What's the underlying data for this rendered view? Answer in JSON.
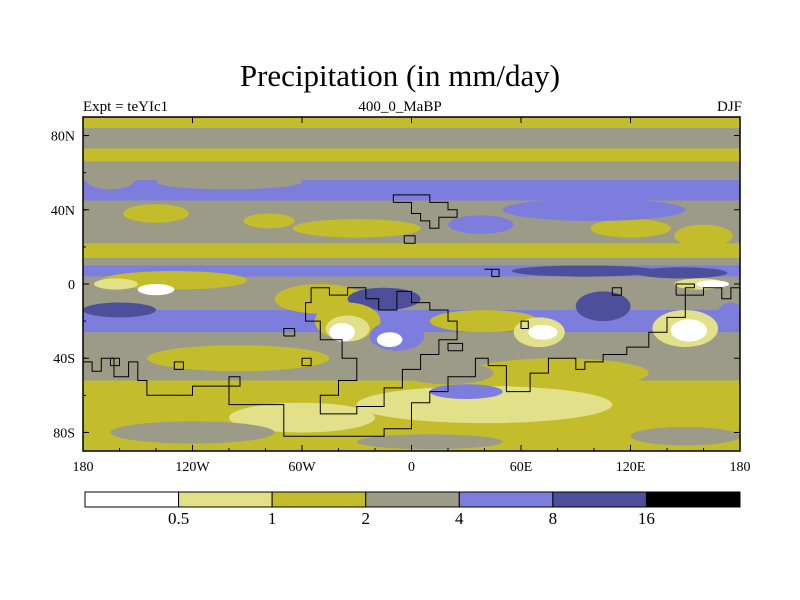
{
  "chart_data": {
    "type": "heatmap",
    "title": "Precipitation (in mm/day)",
    "subtitle_left": "Expt = teYIc1",
    "subtitle_center": "400_0_MaBP",
    "subtitle_right": "DJF",
    "x_range": [
      -180,
      180
    ],
    "y_range": [
      -90,
      90
    ],
    "x_ticks": [
      {
        "value": -180,
        "label": "180"
      },
      {
        "value": -120,
        "label": "120W"
      },
      {
        "value": -60,
        "label": "60W"
      },
      {
        "value": 0,
        "label": "0"
      },
      {
        "value": 60,
        "label": "60E"
      },
      {
        "value": 120,
        "label": "120E"
      },
      {
        "value": 180,
        "label": "180"
      }
    ],
    "y_ticks": [
      {
        "value": 80,
        "label": "80N"
      },
      {
        "value": 40,
        "label": "40N"
      },
      {
        "value": 0,
        "label": "0"
      },
      {
        "value": -40,
        "label": "40S"
      },
      {
        "value": -80,
        "label": "80S"
      }
    ],
    "levels": [
      0.5,
      1,
      2,
      4,
      8,
      16
    ],
    "level_labels": [
      "0.5",
      "1",
      "2",
      "4",
      "8",
      "16"
    ],
    "colors": [
      "#ffffff",
      "#e3e08a",
      "#c4bd2b",
      "#9c9b88",
      "#7d7dde",
      "#4e4f9b",
      "#000000"
    ],
    "zonal_bands": [
      {
        "lat": [
          84,
          90
        ],
        "level": 2
      },
      {
        "lat": [
          73,
          84
        ],
        "level": 3
      },
      {
        "lat": [
          66,
          73
        ],
        "level": 2
      },
      {
        "lat": [
          56,
          66
        ],
        "level": 3
      },
      {
        "lat": [
          45,
          56
        ],
        "level": 4
      },
      {
        "lat": [
          38,
          45
        ],
        "level": 3
      },
      {
        "lat": [
          22,
          38
        ],
        "level": 3
      },
      {
        "lat": [
          14,
          22
        ],
        "level": 2
      },
      {
        "lat": [
          10,
          14
        ],
        "level": 3
      },
      {
        "lat": [
          4,
          10
        ],
        "level": 4
      },
      {
        "lat": [
          -2,
          4
        ],
        "level": 3
      },
      {
        "lat": [
          -14,
          -2
        ],
        "level": 3
      },
      {
        "lat": [
          -26,
          -14
        ],
        "level": 4
      },
      {
        "lat": [
          -34,
          -26
        ],
        "level": 3
      },
      {
        "lat": [
          -52,
          -34
        ],
        "level": 3
      },
      {
        "lat": [
          -60,
          -52
        ],
        "level": 2
      },
      {
        "lat": [
          -90,
          -60
        ],
        "level": 2
      }
    ],
    "blobs": [
      {
        "lon": -165,
        "lat": 57,
        "rx": 14,
        "ry": 6,
        "level": 3
      },
      {
        "lon": -100,
        "lat": 55,
        "rx": 40,
        "ry": 4,
        "level": 3
      },
      {
        "lon": -140,
        "lat": 38,
        "rx": 18,
        "ry": 5,
        "level": 2
      },
      {
        "lon": -30,
        "lat": 30,
        "rx": 35,
        "ry": 5,
        "level": 2
      },
      {
        "lon": -78,
        "lat": 34,
        "rx": 14,
        "ry": 4,
        "level": 2
      },
      {
        "lon": 38,
        "lat": 32,
        "rx": 18,
        "ry": 5,
        "level": 4
      },
      {
        "lon": 120,
        "lat": 30,
        "rx": 22,
        "ry": 5,
        "level": 2
      },
      {
        "lon": 160,
        "lat": 26,
        "rx": 16,
        "ry": 6,
        "level": 2
      },
      {
        "lon": 100,
        "lat": 40,
        "rx": 50,
        "ry": 6,
        "level": 4
      },
      {
        "lon": -130,
        "lat": 2,
        "rx": 40,
        "ry": 5,
        "level": 2
      },
      {
        "lon": -162,
        "lat": 0,
        "rx": 12,
        "ry": 3,
        "level": 1
      },
      {
        "lon": -140,
        "lat": -3,
        "rx": 10,
        "ry": 3,
        "level": 0
      },
      {
        "lon": 158,
        "lat": 0,
        "rx": 14,
        "ry": 3,
        "level": 1
      },
      {
        "lon": 165,
        "lat": 0,
        "rx": 9,
        "ry": 2,
        "level": 0
      },
      {
        "lon": 148,
        "lat": 6,
        "rx": 25,
        "ry": 3,
        "level": 5
      },
      {
        "lon": 95,
        "lat": 7,
        "rx": 40,
        "ry": 3,
        "level": 5
      },
      {
        "lon": -50,
        "lat": -8,
        "rx": 25,
        "ry": 8,
        "level": 2
      },
      {
        "lon": -15,
        "lat": -8,
        "rx": 20,
        "ry": 6,
        "level": 5
      },
      {
        "lon": -160,
        "lat": -14,
        "rx": 20,
        "ry": 4,
        "level": 5
      },
      {
        "lon": -35,
        "lat": -20,
        "rx": 18,
        "ry": 10,
        "level": 2
      },
      {
        "lon": -35,
        "lat": -24,
        "rx": 12,
        "ry": 7,
        "level": 1
      },
      {
        "lon": -38,
        "lat": -26,
        "rx": 7,
        "ry": 5,
        "level": 0
      },
      {
        "lon": -8,
        "lat": -28,
        "rx": 15,
        "ry": 8,
        "level": 4
      },
      {
        "lon": -12,
        "lat": -30,
        "rx": 7,
        "ry": 4,
        "level": 0
      },
      {
        "lon": 40,
        "lat": -20,
        "rx": 30,
        "ry": 6,
        "level": 2
      },
      {
        "lon": 70,
        "lat": -26,
        "rx": 14,
        "ry": 8,
        "level": 1
      },
      {
        "lon": 72,
        "lat": -26,
        "rx": 8,
        "ry": 4,
        "level": 0
      },
      {
        "lon": 105,
        "lat": -12,
        "rx": 15,
        "ry": 8,
        "level": 5
      },
      {
        "lon": 150,
        "lat": -24,
        "rx": 18,
        "ry": 10,
        "level": 1
      },
      {
        "lon": 152,
        "lat": -25,
        "rx": 10,
        "ry": 6,
        "level": 0
      },
      {
        "lon": 175,
        "lat": -18,
        "rx": 8,
        "ry": 8,
        "level": 4
      },
      {
        "lon": -95,
        "lat": -40,
        "rx": 50,
        "ry": 7,
        "level": 2
      },
      {
        "lon": 80,
        "lat": -48,
        "rx": 50,
        "ry": 8,
        "level": 2
      },
      {
        "lon": 20,
        "lat": -48,
        "rx": 25,
        "ry": 6,
        "level": 3
      },
      {
        "lon": 40,
        "lat": -65,
        "rx": 70,
        "ry": 10,
        "level": 1
      },
      {
        "lon": -60,
        "lat": -72,
        "rx": 40,
        "ry": 8,
        "level": 1
      },
      {
        "lon": -150,
        "lat": -60,
        "rx": 25,
        "ry": 5,
        "level": 2
      },
      {
        "lon": -120,
        "lat": -80,
        "rx": 45,
        "ry": 6,
        "level": 3
      },
      {
        "lon": 150,
        "lat": -82,
        "rx": 30,
        "ry": 5,
        "level": 3
      },
      {
        "lon": 10,
        "lat": -85,
        "rx": 40,
        "ry": 4,
        "level": 3
      },
      {
        "lon": 30,
        "lat": -58,
        "rx": 20,
        "ry": 4,
        "level": 4
      }
    ],
    "continents": [
      [
        [
          -180,
          -42
        ],
        [
          -175,
          -42
        ],
        [
          -175,
          -47
        ],
        [
          -170,
          -47
        ],
        [
          -170,
          -40
        ],
        [
          -163,
          -40
        ],
        [
          -163,
          -50
        ],
        [
          -155,
          -50
        ],
        [
          -155,
          -42
        ],
        [
          -150,
          -42
        ],
        [
          -150,
          -52
        ],
        [
          -145,
          -52
        ],
        [
          -145,
          -60
        ],
        [
          -120,
          -60
        ],
        [
          -120,
          -55
        ],
        [
          -100,
          -55
        ],
        [
          -100,
          -65
        ],
        [
          -70,
          -65
        ],
        [
          -70,
          -82
        ],
        [
          -15,
          -82
        ],
        [
          -15,
          -78
        ],
        [
          0,
          -78
        ],
        [
          0,
          -64
        ],
        [
          10,
          -64
        ],
        [
          10,
          -58
        ],
        [
          20,
          -58
        ],
        [
          20,
          -50
        ],
        [
          35,
          -50
        ],
        [
          35,
          -40
        ],
        [
          42,
          -40
        ],
        [
          42,
          -44
        ],
        [
          52,
          -44
        ],
        [
          52,
          -58
        ],
        [
          65,
          -58
        ],
        [
          65,
          -48
        ],
        [
          75,
          -48
        ],
        [
          75,
          -40
        ],
        [
          90,
          -40
        ],
        [
          90,
          -46
        ],
        [
          95,
          -46
        ],
        [
          95,
          -42
        ],
        [
          105,
          -42
        ],
        [
          105,
          -38
        ],
        [
          118,
          -38
        ],
        [
          118,
          -34
        ],
        [
          130,
          -34
        ],
        [
          130,
          -26
        ],
        [
          140,
          -26
        ],
        [
          140,
          -18
        ],
        [
          150,
          -18
        ],
        [
          150,
          -6
        ],
        [
          160,
          -6
        ],
        [
          160,
          -2
        ],
        [
          170,
          -2
        ],
        [
          170,
          -8
        ],
        [
          175,
          -8
        ],
        [
          175,
          -2
        ],
        [
          180,
          -2
        ]
      ],
      [
        [
          -55,
          -2
        ],
        [
          -45,
          -2
        ],
        [
          -45,
          -6
        ],
        [
          -35,
          -6
        ],
        [
          -35,
          -2
        ],
        [
          -25,
          -2
        ],
        [
          -25,
          -8
        ],
        [
          -18,
          -8
        ],
        [
          -18,
          -14
        ],
        [
          -8,
          -14
        ],
        [
          -8,
          -4
        ],
        [
          0,
          -4
        ],
        [
          0,
          -10
        ],
        [
          10,
          -10
        ],
        [
          10,
          -14
        ],
        [
          20,
          -14
        ],
        [
          20,
          -20
        ],
        [
          25,
          -20
        ],
        [
          25,
          -30
        ],
        [
          15,
          -30
        ],
        [
          15,
          -38
        ],
        [
          5,
          -38
        ],
        [
          5,
          -46
        ],
        [
          -5,
          -46
        ],
        [
          -5,
          -56
        ],
        [
          -15,
          -56
        ],
        [
          -15,
          -66
        ],
        [
          -30,
          -66
        ],
        [
          -30,
          -70
        ],
        [
          -50,
          -70
        ],
        [
          -50,
          -60
        ],
        [
          -40,
          -60
        ],
        [
          -40,
          -52
        ],
        [
          -30,
          -52
        ],
        [
          -30,
          -40
        ],
        [
          -38,
          -40
        ],
        [
          -38,
          -30
        ],
        [
          -50,
          -30
        ],
        [
          -50,
          -20
        ],
        [
          -58,
          -20
        ],
        [
          -58,
          -10
        ],
        [
          -55,
          -10
        ],
        [
          -55,
          -2
        ]
      ],
      [
        [
          -10,
          44
        ],
        [
          0,
          44
        ],
        [
          0,
          38
        ],
        [
          5,
          38
        ],
        [
          5,
          34
        ],
        [
          10,
          34
        ],
        [
          10,
          30
        ],
        [
          15,
          30
        ],
        [
          15,
          36
        ],
        [
          25,
          36
        ],
        [
          25,
          40
        ],
        [
          20,
          40
        ],
        [
          20,
          44
        ],
        [
          10,
          44
        ],
        [
          10,
          48
        ],
        [
          0,
          48
        ],
        [
          -10,
          48
        ],
        [
          -10,
          44
        ]
      ],
      [
        [
          40,
          8
        ],
        [
          44,
          8
        ],
        [
          44,
          4
        ],
        [
          48,
          4
        ],
        [
          48,
          8
        ],
        [
          40,
          8
        ]
      ],
      [
        [
          145,
          -6
        ],
        [
          150,
          -6
        ],
        [
          150,
          -2
        ],
        [
          155,
          -2
        ],
        [
          155,
          0
        ],
        [
          145,
          0
        ],
        [
          145,
          -6
        ]
      ],
      [
        [
          110,
          -6
        ],
        [
          115,
          -6
        ],
        [
          115,
          -2
        ],
        [
          110,
          -2
        ],
        [
          110,
          -6
        ]
      ],
      [
        [
          20,
          -36
        ],
        [
          28,
          -36
        ],
        [
          28,
          -32
        ],
        [
          20,
          -32
        ],
        [
          20,
          -36
        ]
      ],
      [
        [
          -70,
          -28
        ],
        [
          -64,
          -28
        ],
        [
          -64,
          -24
        ],
        [
          -70,
          -24
        ],
        [
          -70,
          -28
        ]
      ],
      [
        [
          -165,
          -44
        ],
        [
          -160,
          -44
        ],
        [
          -160,
          -40
        ],
        [
          -165,
          -40
        ],
        [
          -165,
          -44
        ]
      ],
      [
        [
          -130,
          -46
        ],
        [
          -125,
          -46
        ],
        [
          -125,
          -42
        ],
        [
          -130,
          -42
        ],
        [
          -130,
          -46
        ]
      ],
      [
        [
          -100,
          -55
        ],
        [
          -94,
          -55
        ],
        [
          -94,
          -50
        ],
        [
          -100,
          -50
        ],
        [
          -100,
          -55
        ]
      ],
      [
        [
          60,
          -24
        ],
        [
          64,
          -24
        ],
        [
          64,
          -20
        ],
        [
          60,
          -20
        ],
        [
          60,
          -24
        ]
      ],
      [
        [
          -60,
          -44
        ],
        [
          -55,
          -44
        ],
        [
          -55,
          -40
        ],
        [
          -60,
          -40
        ],
        [
          -60,
          -44
        ]
      ],
      [
        [
          -4,
          22
        ],
        [
          2,
          22
        ],
        [
          2,
          26
        ],
        [
          -4,
          26
        ],
        [
          -4,
          22
        ]
      ]
    ]
  }
}
